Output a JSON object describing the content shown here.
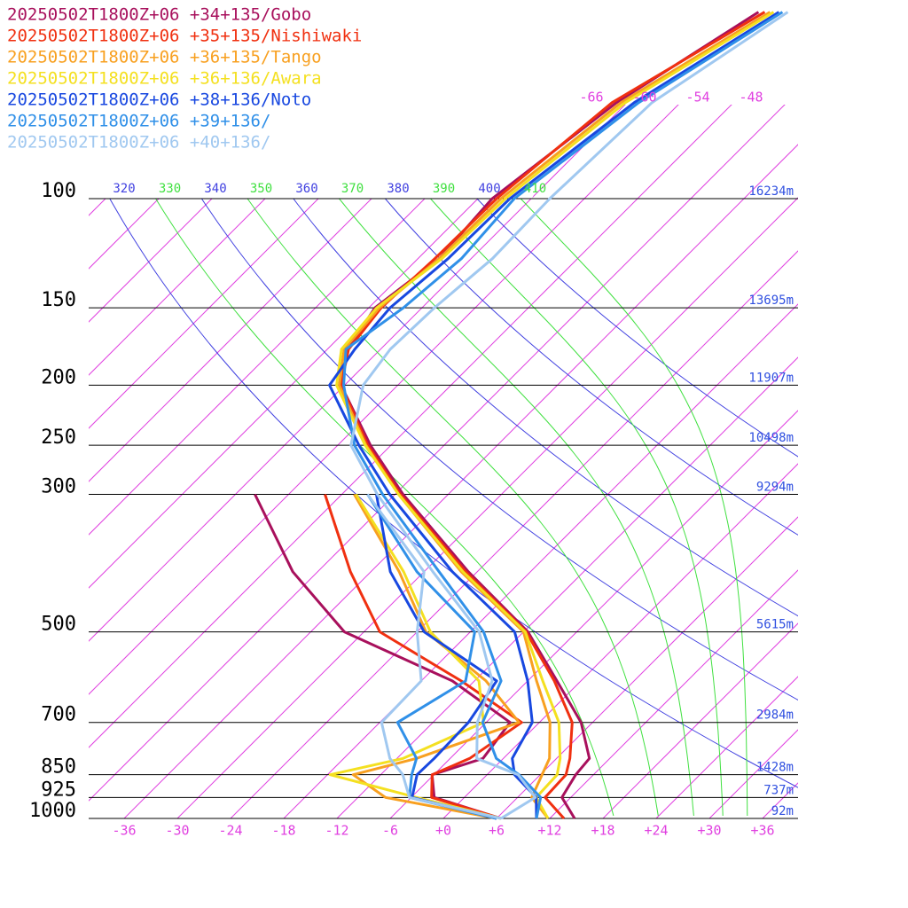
{
  "chart_data": {
    "type": "skewt",
    "ylim": [
      1000,
      100
    ],
    "xlim": [
      -40,
      40
    ],
    "log_scale": true,
    "yticks": [
      100,
      150,
      200,
      250,
      300,
      500,
      700,
      850,
      925,
      1000
    ],
    "heights": [
      "16234m",
      "13695m",
      "11907m",
      "10498m",
      "9294m",
      "5615m",
      "2984m",
      "1428m",
      "737m",
      "92m"
    ],
    "xticks": [
      -36,
      -30,
      -24,
      -18,
      -12,
      -6,
      {
        "value": 0,
        "label": "+0"
      },
      {
        "value": 6,
        "label": "+6"
      },
      {
        "value": 12,
        "label": "+12"
      },
      {
        "value": 18,
        "label": "+18"
      },
      {
        "value": 24,
        "label": "+24"
      },
      {
        "value": 30,
        "label": "+30"
      },
      {
        "value": 36,
        "label": "+36"
      }
    ],
    "isotherm_labels": [
      -66,
      -60,
      -54,
      -48
    ],
    "isotherm_color": "#e040e0",
    "dry_adiabats": [
      320,
      340,
      360,
      380,
      400
    ],
    "dry_color": "#4040e0",
    "moist_adiabats": [
      330,
      350,
      370,
      390,
      410
    ],
    "moist_color": "#40e040",
    "pressure": [
      1000,
      925,
      850,
      800,
      700,
      600,
      500,
      400,
      300,
      250,
      200,
      175,
      150,
      125,
      100,
      70,
      50
    ],
    "dewpoint_pressure": [
      1000,
      925,
      850,
      800,
      700,
      600,
      500,
      400,
      300
    ],
    "series": [
      {
        "name": "20250502T1800Z+06 +34+135/Gobo",
        "color": "#a8105c",
        "temperature": [
          14.8,
          11.0,
          10.0,
          9.7,
          4.7,
          -2.7,
          -11.5,
          -25.0,
          -41.1,
          -50.3,
          -60.4,
          -63.7,
          -65.3,
          -63.6,
          -64.4,
          -61.2,
          -55.4
        ],
        "dewpoint": [
          6.5,
          -3.4,
          -6.2,
          -2.3,
          -3.3,
          -14.5,
          -32.2,
          -44.8,
          -57.8
        ]
      },
      {
        "name": "20250502T1800Z+06 +35+135/Nishiwaki",
        "color": "#f03010",
        "temperature": [
          13.6,
          9.1,
          8.9,
          7.5,
          3.7,
          -3.0,
          -11.7,
          -25.3,
          -41.4,
          -50.6,
          -60.4,
          -63.6,
          -64.6,
          -64.1,
          -63.9,
          -61.7,
          -54.7
        ],
        "dewpoint": [
          6.5,
          -3.7,
          -6.2,
          -3.8,
          -2.0,
          -13.5,
          -28.2,
          -38.3,
          -49.9
        ]
      },
      {
        "name": "20250502T1800Z+06 +36+135/Tango",
        "color": "#f8a020",
        "temperature": [
          11.8,
          7.6,
          6.2,
          5.2,
          1.2,
          -5.0,
          -12.0,
          -25.8,
          -41.6,
          -50.8,
          -60.6,
          -64.1,
          -64.8,
          -63.6,
          -63.4,
          -60.7,
          -54.1
        ],
        "dewpoint": [
          6.0,
          -8.9,
          -15.1,
          -9.8,
          -2.3,
          -10.7,
          -23.0,
          -32.8,
          -46.6
        ]
      },
      {
        "name": "20250502T1800Z+06 +36+136/Awara",
        "color": "#f4e020",
        "temperature": [
          11.8,
          8.1,
          7.9,
          6.4,
          2.2,
          -4.3,
          -11.8,
          -25.6,
          -41.6,
          -50.9,
          -60.9,
          -64.4,
          -65.1,
          -63.3,
          -62.9,
          -60.2,
          -53.7
        ],
        "dewpoint": [
          6.5,
          -5.4,
          -17.7,
          -11.3,
          -6.3,
          -11.5,
          -22.5,
          -32.3,
          -46.4
        ]
      },
      {
        "name": "20250502T1800Z+06 +38+136/Noto",
        "color": "#1848e0",
        "temperature": [
          10.5,
          8.1,
          3.1,
          1.0,
          -0.8,
          -6.0,
          -13.0,
          -26.8,
          -42.6,
          -51.6,
          -61.7,
          -62.9,
          -63.6,
          -62.6,
          -62.4,
          -59.2,
          -53.1
        ],
        "dewpoint": [
          6.0,
          -5.9,
          -7.9,
          -7.8,
          -8.0,
          -9.5,
          -23.2,
          -33.8,
          -44.1
        ]
      },
      {
        "name": "20250502T1800Z+06 +39+136/",
        "color": "#3090e8",
        "temperature": [
          10.5,
          8.6,
          3.6,
          -0.8,
          -6.4,
          -9.0,
          -16.5,
          -28.3,
          -43.4,
          -52.1,
          -60.1,
          -63.9,
          -62.1,
          -61.1,
          -61.9,
          -58.7,
          -52.7
        ],
        "dewpoint": [
          6.0,
          -6.2,
          -8.5,
          -9.8,
          -16.0,
          -13.0,
          -17.5,
          -30.8,
          -45.1
        ]
      },
      {
        "name": "20250502T1800Z+06 +40+136/",
        "color": "#a0c8f0",
        "temperature": [
          6.5,
          8.0,
          3.5,
          -3.0,
          -7.0,
          -10.0,
          -17.0,
          -29.0,
          -44.0,
          -52.5,
          -57.9,
          -58.9,
          -58.6,
          -57.6,
          -57.9,
          -57.2,
          -52.1
        ],
        "dewpoint": [
          6.5,
          -6.2,
          -9.5,
          -12.8,
          -17.8,
          -18.0,
          -24.0,
          -30.0,
          -45.1
        ]
      }
    ]
  }
}
